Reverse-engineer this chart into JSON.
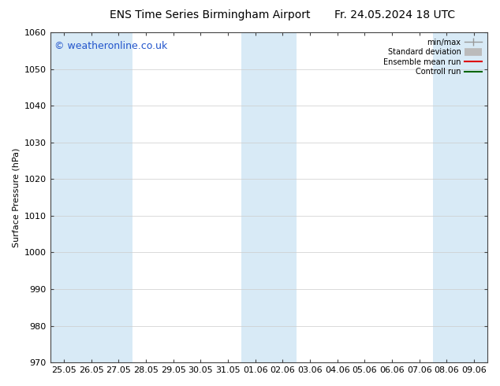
{
  "title_left": "ENS Time Series Birmingham Airport",
  "title_right": "Fr. 24.05.2024 18 UTC",
  "ylabel": "Surface Pressure (hPa)",
  "ylim": [
    970,
    1060
  ],
  "yticks": [
    970,
    980,
    990,
    1000,
    1010,
    1020,
    1030,
    1040,
    1050,
    1060
  ],
  "x_tick_labels": [
    "25.05",
    "26.05",
    "27.05",
    "28.05",
    "29.05",
    "30.05",
    "31.05",
    "01.06",
    "02.06",
    "03.06",
    "04.06",
    "05.06",
    "06.06",
    "07.06",
    "08.06",
    "09.06"
  ],
  "background_color": "#ffffff",
  "plot_bg_color": "#ffffff",
  "shaded_band_color": "#d8eaf6",
  "shaded_indices": [
    0,
    1,
    2,
    7,
    8,
    14,
    15
  ],
  "watermark": "© weatheronline.co.uk",
  "watermark_color": "#2255cc",
  "legend_labels": [
    "min/max",
    "Standard deviation",
    "Ensemble mean run",
    "Controll run"
  ],
  "legend_colors": [
    "#999999",
    "#bbbbbb",
    "#dd0000",
    "#006600"
  ],
  "title_fontsize": 10,
  "axis_label_fontsize": 8,
  "tick_fontsize": 8,
  "watermark_fontsize": 9
}
